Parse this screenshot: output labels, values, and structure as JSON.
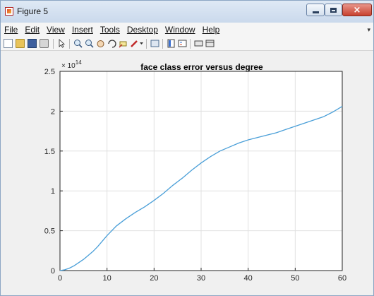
{
  "window": {
    "title": "Figure 5",
    "icon": "matlab-figure-icon",
    "close_glyph": "×"
  },
  "menu": {
    "items": [
      "File",
      "Edit",
      "View",
      "Insert",
      "Tools",
      "Desktop",
      "Window",
      "Help"
    ],
    "overflow_arrow": "▾"
  },
  "toolbar": {
    "buttons": [
      "new-figure-icon",
      "open-file-icon",
      "save-icon",
      "print-icon",
      "select-arrow-icon",
      "zoom-in-icon",
      "zoom-out-icon",
      "pan-icon",
      "rotate-3d-icon",
      "data-cursor-icon",
      "brush-icon",
      "link-plot-icon",
      "insert-colorbar-icon",
      "insert-legend-icon",
      "hide-plot-tools-icon",
      "show-plot-tools-icon"
    ]
  },
  "colors": {
    "line": "#4a9fd8",
    "grid": "#e0e0e0",
    "axes": "#262626"
  },
  "chart_data": {
    "type": "line",
    "title": "face class error versus degree",
    "xlabel": "",
    "ylabel": "",
    "xlim": [
      0,
      60
    ],
    "ylim": [
      0,
      2.5
    ],
    "y_exponent_label": "× 10",
    "y_exponent": "14",
    "xticks": [
      "0",
      "10",
      "20",
      "30",
      "40",
      "50",
      "60"
    ],
    "yticks": [
      "0",
      "0.5",
      "1",
      "1.5",
      "2",
      "2.5"
    ],
    "grid": true,
    "series": [
      {
        "x": [
          0,
          1,
          2,
          3,
          4,
          5,
          6,
          7,
          8,
          10,
          12,
          14,
          16,
          18,
          20,
          22,
          24,
          26,
          28,
          30,
          32,
          34,
          36,
          38,
          40,
          42,
          44,
          46,
          48,
          50,
          52,
          54,
          56,
          58,
          60
        ],
        "y": [
          0,
          0.01,
          0.03,
          0.06,
          0.1,
          0.14,
          0.19,
          0.24,
          0.3,
          0.44,
          0.56,
          0.65,
          0.73,
          0.8,
          0.88,
          0.97,
          1.07,
          1.16,
          1.26,
          1.35,
          1.43,
          1.5,
          1.55,
          1.6,
          1.64,
          1.67,
          1.7,
          1.73,
          1.77,
          1.81,
          1.85,
          1.89,
          1.93,
          1.99,
          2.06
        ]
      }
    ]
  }
}
